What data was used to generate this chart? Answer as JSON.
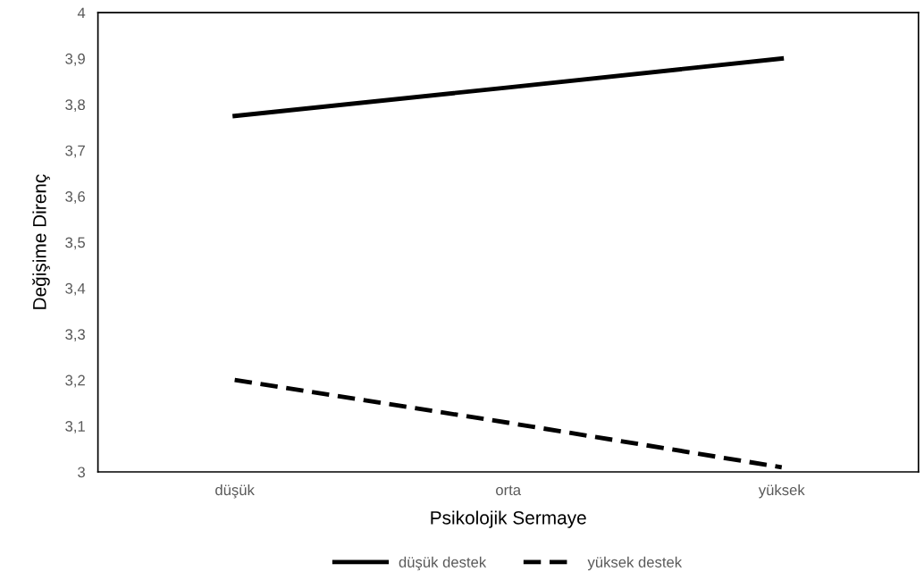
{
  "chart_data": {
    "type": "line",
    "xlabel": "Psikolojik Sermaye",
    "ylabel": "Değişime Direnç",
    "categories": [
      "düşük",
      "orta",
      "yüksek"
    ],
    "series": [
      {
        "name": "düşük destek",
        "color": "#000000",
        "line_style": "solid",
        "values": [
          3.775,
          3.837,
          3.9
        ]
      },
      {
        "name": "yüksek destek",
        "color": "#000000",
        "line_style": "dashed",
        "values": [
          3.2,
          3.107,
          3.01
        ]
      }
    ],
    "ylim": [
      3,
      4
    ],
    "yticks": [
      3,
      {
        "value": 3.1,
        "label": "3,1"
      },
      {
        "value": 3.2,
        "label": "3,2"
      },
      {
        "value": 3.3,
        "label": "3,3"
      },
      {
        "value": 3.4,
        "label": "3,4"
      },
      {
        "value": 3.5,
        "label": "3,5"
      },
      {
        "value": 3.6,
        "label": "3,6"
      },
      {
        "value": 3.7,
        "label": "3,7"
      },
      {
        "value": 3.8,
        "label": "3,8"
      },
      {
        "value": 3.9,
        "label": "3,9"
      },
      4
    ],
    "grid": false,
    "legend": "bottom",
    "marker": "none"
  }
}
